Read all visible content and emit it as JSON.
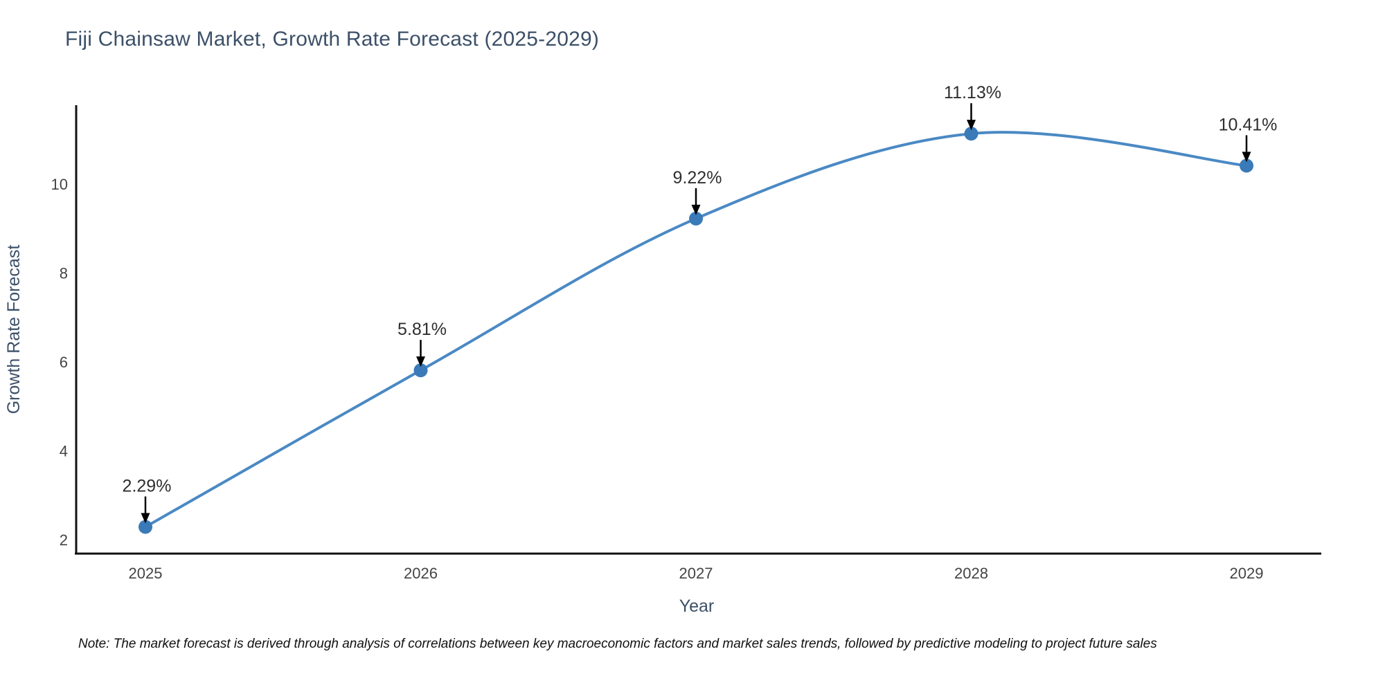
{
  "chart_data": {
    "type": "line",
    "title": "Fiji Chainsaw Market, Growth Rate Forecast (2025-2029)",
    "xlabel": "Year",
    "ylabel": "Growth Rate Forecast",
    "categories": [
      "2025",
      "2026",
      "2027",
      "2028",
      "2029"
    ],
    "x": [
      2025,
      2026,
      2027,
      2028,
      2029
    ],
    "series": [
      {
        "name": "Growth Rate Forecast",
        "values": [
          2.29,
          5.81,
          9.22,
          11.13,
          10.41
        ],
        "point_labels": [
          "2.29%",
          "5.81%",
          "9.22%",
          "11.13%",
          "10.41%"
        ]
      }
    ],
    "yticks": [
      2,
      4,
      6,
      8,
      10
    ],
    "ylim": [
      1.69,
      11.77
    ],
    "line_shape": "spline",
    "grid": false,
    "legend_position": "none",
    "colors": {
      "line": "#4a89c4",
      "marker": "#3a7ab8",
      "annotation_arrow": "#000000",
      "axis_spine": "#111111",
      "title_text": "#3c5068",
      "tick_text": "#444444",
      "annotation_text": "#2f2f2f",
      "note_text": "#111111",
      "background": "#ffffff"
    },
    "note": "Note: The market forecast is derived through analysis of correlations between key macroeconomic factors and market sales trends, followed by predictive modeling to project future sales"
  }
}
